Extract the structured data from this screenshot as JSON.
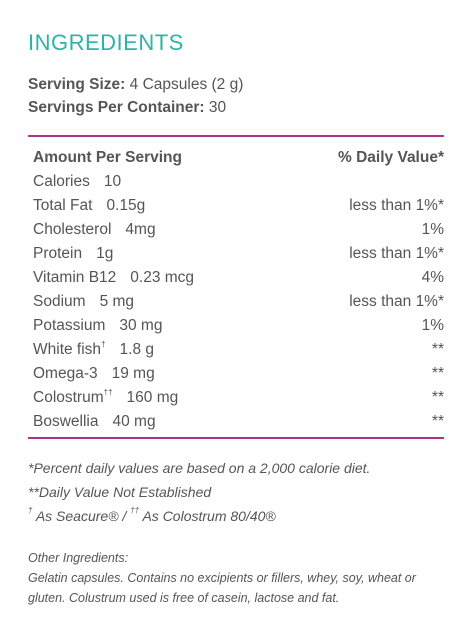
{
  "title": "INGREDIENTS",
  "serving": {
    "size_label": "Serving Size:",
    "size_value": " 4 Capsules (2 g)",
    "per_container_label": "Servings Per Container:",
    "per_container_value": " 30"
  },
  "table": {
    "header_left": "Amount Per Serving",
    "header_right": "% Daily Value*",
    "rows": [
      {
        "name": "Calories",
        "sup": "",
        "amount": "10",
        "dv": ""
      },
      {
        "name": "Total Fat",
        "sup": "",
        "amount": "0.15g",
        "dv": "less than 1%*"
      },
      {
        "name": "Cholesterol",
        "sup": "",
        "amount": "4mg",
        "dv": "1%"
      },
      {
        "name": "Protein",
        "sup": "",
        "amount": "1g",
        "dv": "less than 1%*"
      },
      {
        "name": "Vitamin B12",
        "sup": "",
        "amount": "0.23 mcg",
        "dv": "4%"
      },
      {
        "name": "Sodium",
        "sup": "",
        "amount": "5 mg",
        "dv": "less than 1%*"
      },
      {
        "name": "Potassium",
        "sup": "",
        "amount": "30 mg",
        "dv": "1%"
      },
      {
        "name": "White fish",
        "sup": "†",
        "amount": "1.8 g",
        "dv": "**"
      },
      {
        "name": "Omega-3",
        "sup": "",
        "amount": "19 mg",
        "dv": "**"
      },
      {
        "name": "Colostrum",
        "sup": "††",
        "amount": "160 mg",
        "dv": "**"
      },
      {
        "name": "Boswellia",
        "sup": "",
        "amount": "40 mg",
        "dv": "**"
      }
    ]
  },
  "notes": {
    "percent_note": "*Percent daily values are based on a 2,000 calorie diet.",
    "dv_note": "**Daily Value Not Established",
    "source_sup1": "†",
    "source_text1": " As Seacure® / ",
    "source_sup2": "††",
    "source_text2": " As Colostrum 80/40®"
  },
  "other": {
    "label": "Other Ingredients:",
    "text": "Gelatin capsules. Contains no excipients or fillers, whey, soy, wheat or gluten. Colustrum used is free of casein, lactose and fat."
  }
}
